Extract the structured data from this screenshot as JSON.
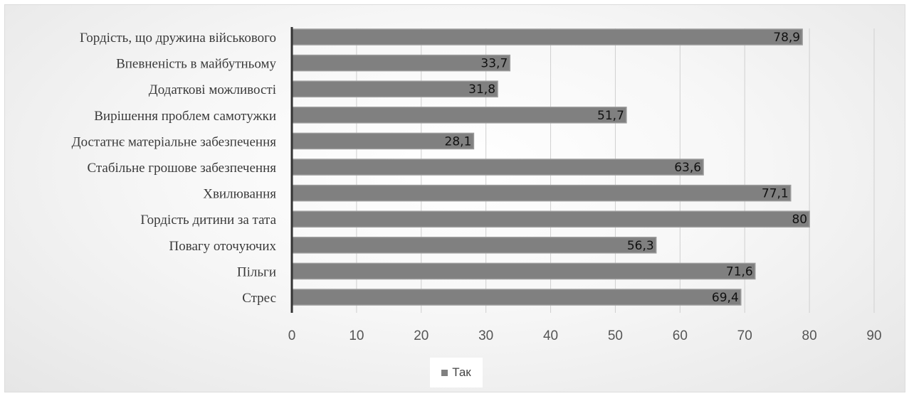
{
  "chart_data": {
    "type": "bar",
    "orientation": "horizontal",
    "categories": [
      "Гордість, що дружина військового",
      "Впевненість в майбутньому",
      "Додаткові можливості",
      "Вирішення проблем самотужки",
      "Достатнє матеріальне забезпечення",
      "Стабільне грошове забезпечення",
      "Хвилювання",
      "Гордість дитини за тата",
      "Повагу оточуючих",
      "Пільги",
      "Стрес"
    ],
    "values": [
      78.9,
      33.7,
      31.8,
      51.7,
      28.1,
      63.6,
      77.1,
      80,
      56.3,
      71.6,
      69.4
    ],
    "data_labels": [
      "78,9",
      "33,7",
      "31,8",
      "51,7",
      "28,1",
      "63,6",
      "77,1",
      "80",
      "56,3",
      "71,6",
      "69,4"
    ],
    "series": [
      {
        "name": "Так"
      }
    ],
    "xticks": [
      "0",
      "10",
      "20",
      "30",
      "40",
      "50",
      "60",
      "70",
      "80",
      "90"
    ],
    "xlim": [
      0,
      90
    ],
    "grid": "vertical",
    "legend_position": "bottom",
    "colors": {
      "bar": "#808080",
      "bar_border": "#9a9a9a",
      "grid": "#cfcfcf",
      "axis": "#333333"
    }
  }
}
